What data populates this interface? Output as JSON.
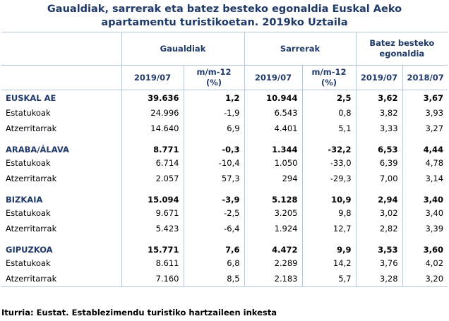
{
  "title_line1": "Gaualdiak, sarrerak eta batez besteko egonaldia Euskal Aeko",
  "title_line2": "apartamentu turistikoetan. 2019ko Uztaila",
  "groups": [
    "Gaualdiak",
    "Sarrerak",
    "Batez besteko egonaldia"
  ],
  "subheaders": [
    "2019/07",
    "m/m-12 (%)",
    "2019/07",
    "m/m-12 (%)",
    "2019/07",
    "2018/07"
  ],
  "rows": [
    {
      "label": "EUSKAL AE",
      "region": true,
      "values": [
        "39.636",
        "1,2",
        "10.944",
        "2,5",
        "3,62",
        "3,67"
      ]
    },
    {
      "label": "Estatukoak",
      "region": false,
      "values": [
        "24.996",
        "-1,9",
        "6.543",
        "0,8",
        "3,82",
        "3,93"
      ]
    },
    {
      "label": "Atzerritarrak",
      "region": false,
      "values": [
        "14.640",
        "6,9",
        "4.401",
        "5,1",
        "3,33",
        "3,27"
      ]
    },
    {
      "label": "ARABA/ÁLAVA",
      "region": true,
      "values": [
        "8.771",
        "-0,3",
        "1.344",
        "-32,2",
        "6,53",
        "4,44"
      ]
    },
    {
      "label": "Estatukoak",
      "region": false,
      "values": [
        "6.714",
        "-10,4",
        "1.050",
        "-33,0",
        "6,39",
        "4,78"
      ]
    },
    {
      "label": "Atzerritarrak",
      "region": false,
      "values": [
        "2.057",
        "57,3",
        "294",
        "-29,3",
        "7,00",
        "3,14"
      ]
    },
    {
      "label": "BIZKAIA",
      "region": true,
      "values": [
        "15.094",
        "-3,9",
        "5.128",
        "10,9",
        "2,94",
        "3,40"
      ]
    },
    {
      "label": "Estatukoak",
      "region": false,
      "values": [
        "9.671",
        "-2,5",
        "3.205",
        "9,8",
        "3,02",
        "3,40"
      ]
    },
    {
      "label": "Atzerritarrak",
      "region": false,
      "values": [
        "5.423",
        "-6,4",
        "1.924",
        "12,7",
        "2,82",
        "3,39"
      ]
    },
    {
      "label": "GIPUZKOA",
      "region": true,
      "values": [
        "15.771",
        "7,6",
        "4.472",
        "9,9",
        "3,53",
        "3,60"
      ]
    },
    {
      "label": "Estatukoak",
      "region": false,
      "values": [
        "8.611",
        "6,8",
        "2.289",
        "14,2",
        "3,76",
        "4,02"
      ]
    },
    {
      "label": "Atzerritarrak",
      "region": false,
      "values": [
        "7.160",
        "8,5",
        "2.183",
        "5,7",
        "3,28",
        "3,20"
      ]
    }
  ],
  "source": "Iturria: Eustat. Establezimendu turistiko hartzaileen inkesta"
}
